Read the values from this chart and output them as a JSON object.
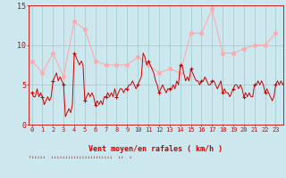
{
  "xlabel": "Vent moyen/en rafales ( km/h )",
  "bg_color": "#cce8ee",
  "grid_color": "#99cccc",
  "avg_color": "#cc0000",
  "gust_color": "#ffaaaa",
  "ylim": [
    0,
    15
  ],
  "yticks": [
    0,
    5,
    10,
    15
  ],
  "hours": [
    0,
    1,
    2,
    3,
    4,
    5,
    6,
    7,
    8,
    9,
    10,
    11,
    12,
    13,
    14,
    15,
    16,
    17,
    18,
    19,
    20,
    21,
    22,
    23
  ],
  "gust_wind": [
    8.0,
    6.5,
    9.0,
    6.0,
    13.0,
    12.0,
    8.0,
    7.5,
    7.5,
    7.5,
    8.5,
    7.5,
    6.5,
    7.0,
    6.5,
    11.5,
    11.5,
    14.5,
    9.0,
    9.0,
    9.5,
    10.0,
    10.0,
    11.5
  ],
  "avg_x": [
    0.0,
    0.17,
    0.33,
    0.5,
    0.67,
    0.83,
    1.0,
    1.17,
    1.33,
    1.5,
    1.67,
    1.83,
    2.0,
    2.17,
    2.33,
    2.5,
    2.67,
    2.83,
    3.0,
    3.17,
    3.33,
    3.5,
    3.67,
    3.83,
    4.0,
    4.17,
    4.33,
    4.5,
    4.67,
    4.83,
    5.0,
    5.17,
    5.33,
    5.5,
    5.67,
    5.83,
    6.0,
    6.17,
    6.33,
    6.5,
    6.67,
    6.83,
    7.0,
    7.17,
    7.33,
    7.5,
    7.67,
    7.83,
    8.0,
    8.17,
    8.33,
    8.5,
    8.67,
    8.83,
    9.0,
    9.17,
    9.33,
    9.5,
    9.67,
    9.83,
    10.0,
    10.17,
    10.33,
    10.5,
    10.67,
    10.83,
    11.0,
    11.17,
    11.33,
    11.5,
    11.67,
    11.83,
    12.0,
    12.17,
    12.33,
    12.5,
    12.67,
    12.83,
    13.0,
    13.17,
    13.33,
    13.5,
    13.67,
    13.83,
    14.0,
    14.17,
    14.33,
    14.5,
    14.67,
    14.83,
    15.0,
    15.17,
    15.33,
    15.5,
    15.67,
    15.83,
    16.0,
    16.17,
    16.33,
    16.5,
    16.67,
    16.83,
    17.0,
    17.17,
    17.33,
    17.5,
    17.67,
    17.83,
    18.0,
    18.17,
    18.33,
    18.5,
    18.67,
    18.83,
    19.0,
    19.17,
    19.33,
    19.5,
    19.67,
    19.83,
    20.0,
    20.17,
    20.33,
    20.5,
    20.67,
    20.83,
    21.0,
    21.17,
    21.33,
    21.5,
    21.67,
    21.83,
    22.0,
    22.17,
    22.33,
    22.5,
    22.67,
    22.83,
    23.0,
    23.17,
    23.33,
    23.5,
    23.67,
    23.83
  ],
  "avg_wind_dense": [
    4.0,
    3.5,
    3.5,
    4.5,
    3.5,
    4.0,
    3.5,
    2.5,
    3.0,
    3.5,
    3.0,
    3.5,
    5.5,
    6.0,
    6.5,
    5.5,
    6.0,
    5.5,
    5.0,
    1.0,
    1.5,
    2.0,
    1.5,
    2.5,
    9.0,
    8.5,
    8.0,
    7.5,
    8.0,
    7.5,
    3.0,
    3.5,
    4.0,
    3.5,
    4.0,
    3.5,
    2.5,
    3.0,
    2.5,
    3.0,
    2.5,
    3.5,
    3.5,
    4.0,
    3.5,
    4.0,
    3.5,
    4.5,
    3.5,
    4.0,
    4.5,
    4.5,
    4.0,
    4.5,
    4.5,
    5.0,
    5.0,
    5.5,
    5.0,
    4.5,
    5.0,
    5.5,
    6.0,
    9.0,
    8.5,
    7.5,
    8.0,
    7.5,
    7.0,
    6.5,
    5.5,
    5.0,
    4.0,
    4.5,
    5.0,
    4.5,
    4.0,
    4.5,
    4.5,
    4.5,
    5.0,
    4.5,
    5.5,
    5.0,
    7.5,
    7.5,
    6.5,
    5.5,
    6.0,
    5.5,
    7.0,
    6.5,
    6.0,
    5.5,
    5.5,
    5.0,
    5.5,
    5.5,
    6.0,
    5.5,
    5.0,
    5.0,
    5.5,
    5.5,
    5.0,
    4.5,
    5.0,
    5.5,
    4.0,
    4.5,
    4.0,
    4.0,
    3.5,
    4.0,
    4.5,
    5.0,
    5.0,
    4.5,
    5.0,
    4.5,
    3.5,
    4.0,
    3.5,
    4.0,
    3.5,
    3.5,
    5.0,
    5.0,
    5.5,
    5.0,
    5.5,
    5.0,
    4.0,
    4.5,
    4.0,
    3.5,
    3.0,
    3.5,
    5.0,
    5.5,
    5.0,
    5.5,
    5.0,
    5.5
  ],
  "avg_markers_x": [
    0,
    1,
    2,
    3,
    4,
    5,
    6,
    7,
    8,
    9,
    10,
    11,
    12,
    13,
    14,
    15,
    16,
    17,
    18,
    19,
    20,
    21,
    22,
    23
  ],
  "avg_markers_y": [
    4.0,
    3.5,
    5.5,
    5.0,
    9.0,
    3.0,
    2.5,
    3.5,
    3.5,
    4.5,
    5.0,
    8.0,
    4.0,
    4.5,
    7.5,
    7.0,
    5.5,
    5.5,
    4.0,
    4.5,
    3.5,
    5.0,
    4.0,
    5.0
  ]
}
